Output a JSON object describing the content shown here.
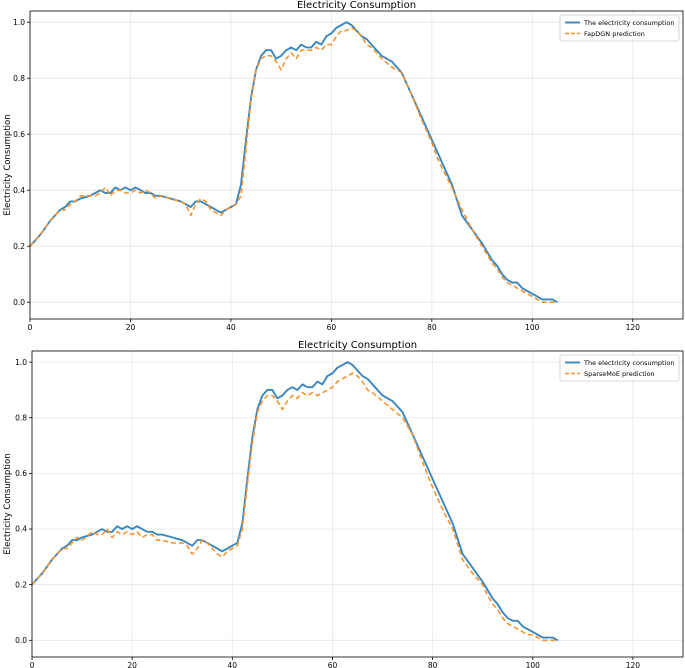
{
  "colors": {
    "actual": "#3a87c0",
    "prediction": "#f5932e",
    "grid": "#e6e6e6"
  },
  "chart_data": [
    {
      "type": "line",
      "title": "Electricity Consumption",
      "xlabel": "",
      "ylabel": "Electricity Consumption",
      "xlim": [
        0,
        130
      ],
      "ylim": [
        -0.06,
        1.04
      ],
      "xticks": [
        0,
        20,
        40,
        60,
        80,
        100,
        120
      ],
      "yticks": [
        0.0,
        0.2,
        0.4,
        0.6,
        0.8,
        1.0
      ],
      "grid": true,
      "legend_position": "top-right",
      "series": [
        {
          "name": "The electricity consumption",
          "style": "solid",
          "x": [
            0,
            2,
            4,
            6,
            7,
            8,
            9,
            10,
            12,
            13,
            14,
            15,
            16,
            17,
            18,
            19,
            20,
            21,
            22,
            23,
            24,
            25,
            26,
            28,
            30,
            31,
            32,
            33,
            34,
            35,
            36,
            37,
            38,
            39,
            40,
            41,
            42,
            43,
            44,
            45,
            46,
            47,
            48,
            49,
            50,
            51,
            52,
            53,
            54,
            55,
            56,
            57,
            58,
            59,
            60,
            61,
            62,
            63,
            64,
            65,
            66,
            67,
            68,
            70,
            72,
            74,
            76,
            78,
            80,
            81,
            82,
            84,
            86,
            88,
            90,
            91,
            92,
            93,
            94,
            95,
            96,
            97,
            98,
            99,
            100,
            101,
            102,
            103,
            104,
            105
          ],
          "values": [
            0.2,
            0.24,
            0.29,
            0.33,
            0.34,
            0.36,
            0.36,
            0.37,
            0.38,
            0.39,
            0.4,
            0.39,
            0.39,
            0.41,
            0.4,
            0.41,
            0.4,
            0.41,
            0.4,
            0.39,
            0.39,
            0.38,
            0.38,
            0.37,
            0.36,
            0.35,
            0.34,
            0.36,
            0.36,
            0.35,
            0.34,
            0.33,
            0.32,
            0.33,
            0.34,
            0.35,
            0.42,
            0.58,
            0.73,
            0.83,
            0.88,
            0.9,
            0.9,
            0.87,
            0.88,
            0.9,
            0.91,
            0.9,
            0.92,
            0.91,
            0.91,
            0.93,
            0.92,
            0.95,
            0.96,
            0.98,
            0.99,
            1.0,
            0.99,
            0.97,
            0.95,
            0.94,
            0.92,
            0.88,
            0.86,
            0.82,
            0.74,
            0.66,
            0.58,
            0.54,
            0.5,
            0.42,
            0.31,
            0.26,
            0.21,
            0.18,
            0.15,
            0.13,
            0.1,
            0.08,
            0.07,
            0.07,
            0.05,
            0.04,
            0.03,
            0.02,
            0.01,
            0.01,
            0.01,
            0.0
          ]
        },
        {
          "name": "FapDGN prediction",
          "style": "dashed",
          "x": [
            0,
            2,
            4,
            6,
            7,
            8,
            9,
            10,
            12,
            13,
            14,
            15,
            16,
            17,
            18,
            19,
            20,
            21,
            22,
            23,
            24,
            25,
            26,
            28,
            30,
            31,
            32,
            33,
            34,
            35,
            36,
            37,
            38,
            39,
            40,
            41,
            42,
            43,
            44,
            45,
            46,
            47,
            48,
            49,
            50,
            51,
            52,
            53,
            54,
            55,
            56,
            57,
            58,
            59,
            60,
            61,
            62,
            63,
            64,
            65,
            66,
            67,
            68,
            70,
            72,
            74,
            76,
            78,
            80,
            81,
            82,
            84,
            86,
            88,
            90,
            91,
            92,
            93,
            94,
            95,
            96,
            97,
            98,
            99,
            100,
            101,
            102,
            103,
            104,
            105
          ],
          "values": [
            0.2,
            0.24,
            0.29,
            0.33,
            0.33,
            0.35,
            0.36,
            0.38,
            0.38,
            0.38,
            0.39,
            0.41,
            0.38,
            0.4,
            0.4,
            0.39,
            0.39,
            0.4,
            0.39,
            0.4,
            0.39,
            0.37,
            0.38,
            0.37,
            0.36,
            0.35,
            0.31,
            0.35,
            0.37,
            0.36,
            0.33,
            0.32,
            0.31,
            0.33,
            0.34,
            0.35,
            0.38,
            0.55,
            0.72,
            0.83,
            0.87,
            0.88,
            0.88,
            0.86,
            0.83,
            0.87,
            0.89,
            0.87,
            0.9,
            0.9,
            0.9,
            0.91,
            0.9,
            0.92,
            0.92,
            0.95,
            0.97,
            0.97,
            0.98,
            0.97,
            0.95,
            0.92,
            0.91,
            0.87,
            0.84,
            0.82,
            0.74,
            0.65,
            0.57,
            0.52,
            0.48,
            0.41,
            0.33,
            0.26,
            0.2,
            0.17,
            0.14,
            0.12,
            0.09,
            0.07,
            0.06,
            0.05,
            0.04,
            0.03,
            0.02,
            0.01,
            0.0,
            0.0,
            0.0,
            0.0
          ]
        }
      ]
    },
    {
      "type": "line",
      "title": "Electricity Consumption",
      "xlabel": "",
      "ylabel": "Electricity Consumption",
      "xlim": [
        0,
        130
      ],
      "ylim": [
        -0.06,
        1.04
      ],
      "xticks": [
        0,
        20,
        40,
        60,
        80,
        100,
        120
      ],
      "yticks": [
        0.0,
        0.2,
        0.4,
        0.6,
        0.8,
        1.0
      ],
      "grid": true,
      "legend_position": "top-right",
      "series": [
        {
          "name": "The electricity consumption",
          "style": "solid",
          "x": [
            0,
            2,
            4,
            6,
            7,
            8,
            9,
            10,
            12,
            13,
            14,
            15,
            16,
            17,
            18,
            19,
            20,
            21,
            22,
            23,
            24,
            25,
            26,
            28,
            30,
            31,
            32,
            33,
            34,
            35,
            36,
            37,
            38,
            39,
            40,
            41,
            42,
            43,
            44,
            45,
            46,
            47,
            48,
            49,
            50,
            51,
            52,
            53,
            54,
            55,
            56,
            57,
            58,
            59,
            60,
            61,
            62,
            63,
            64,
            65,
            66,
            67,
            68,
            70,
            72,
            74,
            76,
            78,
            80,
            81,
            82,
            84,
            86,
            88,
            90,
            91,
            92,
            93,
            94,
            95,
            96,
            97,
            98,
            99,
            100,
            101,
            102,
            103,
            104,
            105
          ],
          "values": [
            0.2,
            0.24,
            0.29,
            0.33,
            0.34,
            0.36,
            0.36,
            0.37,
            0.38,
            0.39,
            0.4,
            0.39,
            0.39,
            0.41,
            0.4,
            0.41,
            0.4,
            0.41,
            0.4,
            0.39,
            0.39,
            0.38,
            0.38,
            0.37,
            0.36,
            0.35,
            0.34,
            0.36,
            0.36,
            0.35,
            0.34,
            0.33,
            0.32,
            0.33,
            0.34,
            0.35,
            0.42,
            0.58,
            0.73,
            0.83,
            0.88,
            0.9,
            0.9,
            0.87,
            0.88,
            0.9,
            0.91,
            0.9,
            0.92,
            0.91,
            0.91,
            0.93,
            0.92,
            0.95,
            0.96,
            0.98,
            0.99,
            1.0,
            0.99,
            0.97,
            0.95,
            0.94,
            0.92,
            0.88,
            0.86,
            0.82,
            0.74,
            0.66,
            0.58,
            0.54,
            0.5,
            0.42,
            0.31,
            0.26,
            0.21,
            0.18,
            0.15,
            0.13,
            0.1,
            0.08,
            0.07,
            0.07,
            0.05,
            0.04,
            0.03,
            0.02,
            0.01,
            0.01,
            0.01,
            0.0
          ]
        },
        {
          "name": "SparseMoE prediction",
          "style": "dashed",
          "x": [
            0,
            2,
            4,
            6,
            7,
            8,
            9,
            10,
            12,
            13,
            14,
            15,
            16,
            17,
            18,
            19,
            20,
            21,
            22,
            23,
            24,
            25,
            26,
            28,
            30,
            31,
            32,
            33,
            34,
            35,
            36,
            37,
            38,
            39,
            40,
            41,
            42,
            43,
            44,
            45,
            46,
            47,
            48,
            49,
            50,
            51,
            52,
            53,
            54,
            55,
            56,
            57,
            58,
            59,
            60,
            61,
            62,
            63,
            64,
            65,
            66,
            67,
            68,
            70,
            72,
            74,
            76,
            78,
            80,
            81,
            82,
            84,
            86,
            88,
            90,
            91,
            92,
            93,
            94,
            95,
            96,
            97,
            98,
            99,
            100,
            101,
            102,
            103,
            104,
            105
          ],
          "values": [
            0.2,
            0.24,
            0.29,
            0.33,
            0.33,
            0.35,
            0.37,
            0.36,
            0.39,
            0.38,
            0.38,
            0.4,
            0.37,
            0.39,
            0.38,
            0.39,
            0.38,
            0.39,
            0.37,
            0.38,
            0.38,
            0.36,
            0.36,
            0.35,
            0.35,
            0.34,
            0.31,
            0.33,
            0.36,
            0.35,
            0.33,
            0.31,
            0.3,
            0.32,
            0.33,
            0.34,
            0.4,
            0.56,
            0.71,
            0.82,
            0.86,
            0.88,
            0.88,
            0.86,
            0.83,
            0.86,
            0.88,
            0.87,
            0.89,
            0.88,
            0.89,
            0.88,
            0.89,
            0.9,
            0.91,
            0.93,
            0.94,
            0.95,
            0.96,
            0.95,
            0.93,
            0.9,
            0.89,
            0.86,
            0.83,
            0.8,
            0.74,
            0.64,
            0.55,
            0.51,
            0.47,
            0.4,
            0.29,
            0.24,
            0.2,
            0.16,
            0.13,
            0.11,
            0.08,
            0.06,
            0.05,
            0.04,
            0.03,
            0.02,
            0.02,
            0.01,
            0.0,
            0.0,
            0.0,
            0.0
          ]
        }
      ]
    }
  ]
}
